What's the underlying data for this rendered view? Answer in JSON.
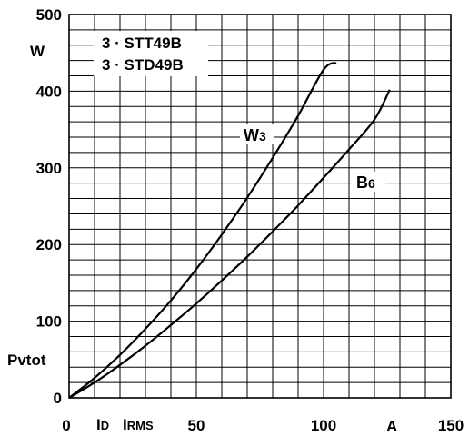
{
  "chart_data": {
    "type": "line",
    "title": "",
    "legend_box": [
      "3 · STT49B",
      "3 · STD49B"
    ],
    "xlim": [
      0,
      150
    ],
    "ylim": [
      0,
      500
    ],
    "x_ticks": [
      0,
      50,
      100,
      150
    ],
    "y_ticks": [
      0,
      100,
      200,
      300,
      400,
      500
    ],
    "x_tick_labels": [
      "0",
      "50",
      "100",
      "150"
    ],
    "y_tick_labels": [
      "0",
      "100",
      "200",
      "300",
      "400",
      "500"
    ],
    "x_label_parts": {
      "id": "ID",
      "irms": "IRMS",
      "unit": "A"
    },
    "y_label": {
      "unit": "W",
      "quantity": "Pvtot"
    },
    "grid": true,
    "series": [
      {
        "name": "W3",
        "label_main": "W",
        "label_sub": "3",
        "x": [
          0,
          10,
          20,
          30,
          40,
          50,
          60,
          70,
          80,
          90,
          100,
          105
        ],
        "y": [
          0,
          26,
          56,
          90,
          127,
          168,
          213,
          261,
          313,
          368,
          428,
          437
        ]
      },
      {
        "name": "B6",
        "label_main": "B",
        "label_sub": "6",
        "x": [
          0,
          10,
          20,
          30,
          40,
          50,
          60,
          70,
          80,
          90,
          100,
          110,
          120,
          126
        ],
        "y": [
          0,
          20,
          43,
          68,
          95,
          123,
          153,
          184,
          217,
          251,
          287,
          324,
          363,
          402
        ]
      }
    ]
  }
}
